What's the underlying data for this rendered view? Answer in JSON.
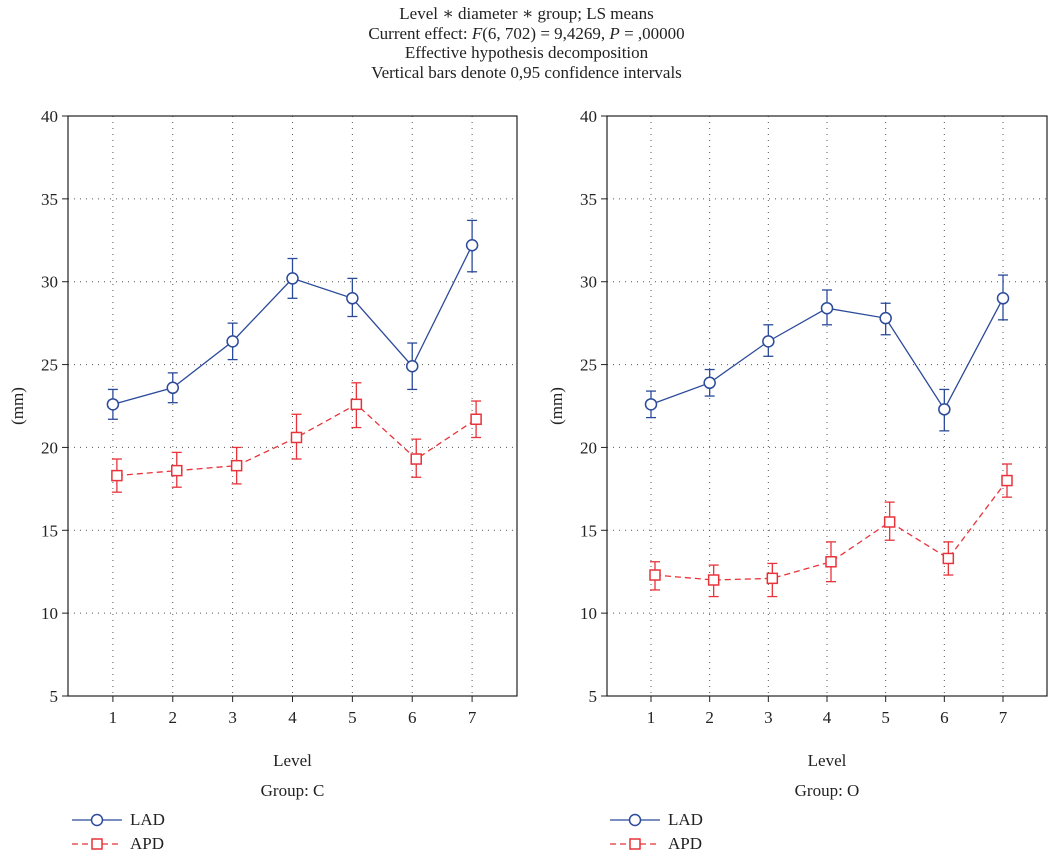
{
  "header": {
    "line1": "Level ∗ diameter ∗ group; LS means",
    "line2_prefix": "Current effect: ",
    "line2_F": "F",
    "line2_mid": "(6, 702) = 9,4269, ",
    "line2_P": "P",
    "line2_suffix": " = ,00000",
    "line3": "Effective hypothesis decomposition",
    "line4": "Vertical bars denote 0,95 confidence intervals"
  },
  "colors": {
    "LAD": "#2b4a9a",
    "APD": "#e8333a",
    "grid": "#555555"
  },
  "chart_data": [
    {
      "type": "line",
      "group_label": "Group: C",
      "xlabel": "Level",
      "ylabel": "(mm)",
      "categories": [
        "1",
        "2",
        "3",
        "4",
        "5",
        "6",
        "7"
      ],
      "ylim": [
        5,
        40
      ],
      "yticks": [
        "5",
        "10",
        "15",
        "20",
        "25",
        "30",
        "35",
        "40"
      ],
      "grid": true,
      "series": [
        {
          "name": "LAD",
          "marker": "circle",
          "dash": "solid",
          "values": [
            22.6,
            23.6,
            26.4,
            30.2,
            29.0,
            24.9,
            32.2
          ],
          "lower": [
            21.7,
            22.7,
            25.3,
            29.0,
            27.9,
            23.5,
            30.6
          ],
          "upper": [
            23.5,
            24.5,
            27.5,
            31.4,
            30.2,
            26.3,
            33.7
          ]
        },
        {
          "name": "APD",
          "marker": "square",
          "dash": "dashed",
          "values": [
            18.3,
            18.6,
            18.9,
            20.6,
            22.6,
            19.3,
            21.7
          ],
          "lower": [
            17.3,
            17.6,
            17.8,
            19.3,
            21.2,
            18.2,
            20.6
          ],
          "upper": [
            19.3,
            19.7,
            20.0,
            22.0,
            23.9,
            20.5,
            22.8
          ]
        }
      ]
    },
    {
      "type": "line",
      "group_label": "Group: O",
      "xlabel": "Level",
      "ylabel": "(mm)",
      "categories": [
        "1",
        "2",
        "3",
        "4",
        "5",
        "6",
        "7"
      ],
      "ylim": [
        5,
        40
      ],
      "yticks": [
        "5",
        "10",
        "15",
        "20",
        "25",
        "30",
        "35",
        "40"
      ],
      "grid": true,
      "series": [
        {
          "name": "LAD",
          "marker": "circle",
          "dash": "solid",
          "values": [
            22.6,
            23.9,
            26.4,
            28.4,
            27.8,
            22.3,
            29.0
          ],
          "lower": [
            21.8,
            23.1,
            25.5,
            27.4,
            26.8,
            21.0,
            27.7
          ],
          "upper": [
            23.4,
            24.7,
            27.4,
            29.5,
            28.7,
            23.5,
            30.4
          ]
        },
        {
          "name": "APD",
          "marker": "square",
          "dash": "dashed",
          "values": [
            12.3,
            12.0,
            12.1,
            13.1,
            15.5,
            13.3,
            18.0
          ],
          "lower": [
            11.4,
            11.0,
            11.0,
            11.9,
            14.4,
            12.3,
            17.0
          ],
          "upper": [
            13.1,
            12.9,
            13.0,
            14.3,
            16.7,
            14.3,
            19.0
          ]
        }
      ]
    }
  ],
  "legends": [
    {
      "items": [
        "LAD",
        "APD"
      ]
    },
    {
      "items": [
        "LAD",
        "APD"
      ]
    }
  ]
}
